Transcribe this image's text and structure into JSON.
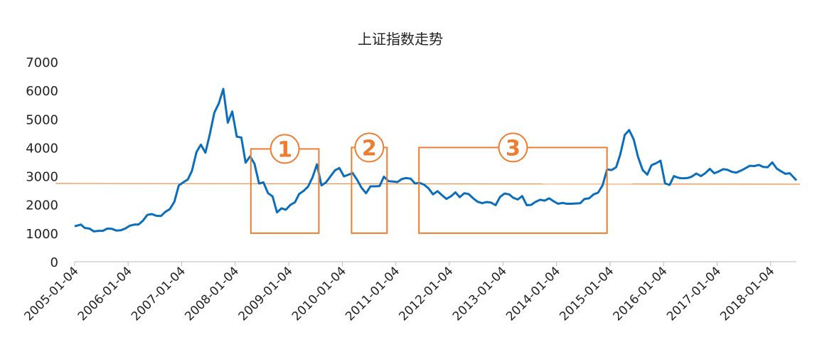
{
  "chart_data": {
    "type": "line",
    "title": "上证指数走势",
    "color": "#0a6ebd",
    "x": [
      "2005-01-04",
      "2005-02-15",
      "2005-03-15",
      "2005-04-15",
      "2005-05-15",
      "2005-06-15",
      "2005-07-15",
      "2005-08-15",
      "2005-09-15",
      "2005-10-15",
      "2005-11-15",
      "2005-12-15",
      "2006-01-15",
      "2006-02-15",
      "2006-03-15",
      "2006-04-15",
      "2006-05-15",
      "2006-06-15",
      "2006-07-15",
      "2006-08-15",
      "2006-09-15",
      "2006-10-15",
      "2006-11-15",
      "2006-12-15",
      "2007-01-15",
      "2007-02-15",
      "2007-03-15",
      "2007-04-15",
      "2007-05-15",
      "2007-06-15",
      "2007-07-15",
      "2007-08-15",
      "2007-09-15",
      "2007-10-15",
      "2007-11-15",
      "2007-12-15",
      "2008-01-15",
      "2008-02-15",
      "2008-03-15",
      "2008-04-15",
      "2008-05-15",
      "2008-06-15",
      "2008-07-15",
      "2008-08-15",
      "2008-09-15",
      "2008-10-15",
      "2008-11-15",
      "2008-12-15",
      "2009-01-15",
      "2009-02-15",
      "2009-03-15",
      "2009-04-15",
      "2009-05-15",
      "2009-06-15",
      "2009-07-15",
      "2009-08-15",
      "2009-09-15",
      "2009-10-15",
      "2009-11-15",
      "2009-12-15",
      "2010-01-15",
      "2010-02-15",
      "2010-03-15",
      "2010-04-15",
      "2010-05-15",
      "2010-06-15",
      "2010-07-15",
      "2010-08-15",
      "2010-09-15",
      "2010-10-15",
      "2010-11-15",
      "2010-12-15",
      "2011-01-15",
      "2011-02-15",
      "2011-03-15",
      "2011-04-15",
      "2011-05-15",
      "2011-06-15",
      "2011-07-15",
      "2011-08-15",
      "2011-09-15",
      "2011-10-15",
      "2011-11-15",
      "2011-12-15",
      "2012-01-15",
      "2012-02-15",
      "2012-03-15",
      "2012-04-15",
      "2012-05-15",
      "2012-06-15",
      "2012-07-15",
      "2012-08-15",
      "2012-09-15",
      "2012-10-15",
      "2012-11-15",
      "2012-12-15",
      "2013-01-15",
      "2013-02-15",
      "2013-03-15",
      "2013-04-15",
      "2013-05-15",
      "2013-06-15",
      "2013-07-15",
      "2013-08-15",
      "2013-09-15",
      "2013-10-15",
      "2013-11-15",
      "2013-12-15",
      "2014-01-15",
      "2014-02-15",
      "2014-03-15",
      "2014-04-15",
      "2014-05-15",
      "2014-06-15",
      "2014-07-15",
      "2014-08-15",
      "2014-09-15",
      "2014-10-15",
      "2014-11-15",
      "2014-12-15",
      "2015-01-15",
      "2015-02-15",
      "2015-03-15",
      "2015-04-15",
      "2015-05-15",
      "2015-06-15",
      "2015-07-15",
      "2015-08-15",
      "2015-09-15",
      "2015-10-15",
      "2015-11-15",
      "2015-12-15",
      "2016-01-15",
      "2016-02-15",
      "2016-03-15",
      "2016-04-15",
      "2016-05-15",
      "2016-06-15",
      "2016-07-15",
      "2016-08-15",
      "2016-09-15",
      "2016-10-15",
      "2016-11-15",
      "2016-12-15",
      "2017-01-15",
      "2017-02-15",
      "2017-03-15",
      "2017-04-15",
      "2017-05-15",
      "2017-06-15",
      "2017-07-15",
      "2017-08-15",
      "2017-09-15",
      "2017-10-15",
      "2017-11-15",
      "2017-12-15",
      "2018-01-15",
      "2018-02-15",
      "2018-03-15",
      "2018-04-15",
      "2018-05-15",
      "2018-06-29"
    ],
    "values": [
      1240,
      1300,
      1180,
      1160,
      1060,
      1080,
      1080,
      1160,
      1150,
      1090,
      1100,
      1160,
      1260,
      1300,
      1300,
      1440,
      1640,
      1670,
      1610,
      1600,
      1750,
      1840,
      2100,
      2670,
      2780,
      2880,
      3180,
      3840,
      4100,
      3820,
      4470,
      5220,
      5550,
      6050,
      4870,
      5260,
      4380,
      4350,
      3470,
      3690,
      3430,
      2740,
      2780,
      2400,
      2290,
      1730,
      1870,
      1820,
      1990,
      2080,
      2370,
      2480,
      2630,
      2960,
      3410,
      2670,
      2780,
      2990,
      3200,
      3280,
      2990,
      3050,
      3110,
      2870,
      2590,
      2400,
      2640,
      2640,
      2650,
      2980,
      2820,
      2810,
      2790,
      2900,
      2930,
      2910,
      2740,
      2760,
      2700,
      2570,
      2360,
      2470,
      2330,
      2200,
      2290,
      2430,
      2260,
      2400,
      2370,
      2220,
      2100,
      2050,
      2090,
      2070,
      1980,
      2270,
      2390,
      2360,
      2240,
      2180,
      2300,
      1980,
      1990,
      2100,
      2170,
      2140,
      2220,
      2120,
      2030,
      2060,
      2030,
      2030,
      2040,
      2050,
      2200,
      2220,
      2360,
      2420,
      2680,
      3230,
      3210,
      3310,
      3750,
      4440,
      4610,
      4280,
      3660,
      3210,
      3050,
      3380,
      3450,
      3540,
      2740,
      2690,
      3000,
      2940,
      2920,
      2930,
      2980,
      3090,
      3000,
      3100,
      3250,
      3100,
      3160,
      3240,
      3220,
      3150,
      3120,
      3190,
      3270,
      3360,
      3350,
      3390,
      3320,
      3310,
      3480,
      3260,
      3170,
      3080,
      3100,
      2850
    ],
    "xlim": [
      "2005-01-04",
      "2018-06-29"
    ],
    "xticks": [
      "2005-01-04",
      "2006-01-04",
      "2007-01-04",
      "2008-01-04",
      "2009-01-04",
      "2010-01-04",
      "2011-01-04",
      "2012-01-04",
      "2013-01-04",
      "2014-01-04",
      "2015-01-04",
      "2016-01-04",
      "2017-01-04",
      "2018-01-04"
    ],
    "ylim": [
      0,
      7000
    ],
    "yticks": [
      0,
      1000,
      2000,
      3000,
      4000,
      5000,
      6000,
      7000
    ],
    "reference_line": {
      "color": "#f08a3c",
      "values": [
        2740,
        2715
      ]
    },
    "annotations": [
      {
        "label": "1",
        "x": [
          "2008-04-20",
          "2009-07-28"
        ],
        "y": [
          1000,
          3950
        ]
      },
      {
        "label": "2",
        "x": [
          "2010-03-08",
          "2010-11-05"
        ],
        "y": [
          1000,
          4000
        ]
      },
      {
        "label": "3",
        "x": [
          "2011-06-11",
          "2014-12-15"
        ],
        "y": [
          1000,
          4000
        ]
      }
    ],
    "annotation_color": "#ed7d31"
  }
}
